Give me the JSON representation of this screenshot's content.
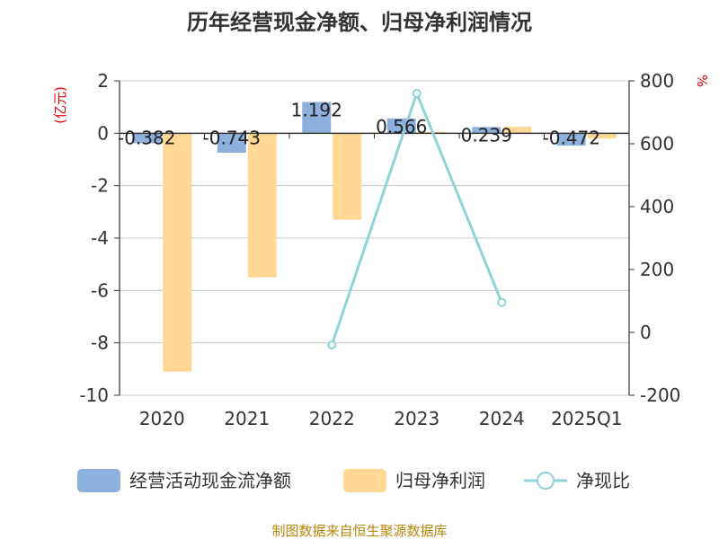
{
  "chart_data": {
    "type": "bar",
    "title": "历年经营现金净额、归母净利润情况",
    "categories": [
      "2020",
      "2021",
      "2022",
      "2023",
      "2024",
      "2025Q1"
    ],
    "left_axis": {
      "unit": "(亿元)",
      "ylim": [
        -10,
        2
      ],
      "ticks": [
        2,
        0,
        -2,
        -4,
        -6,
        -8,
        -10
      ]
    },
    "right_axis": {
      "unit": "%",
      "ylim": [
        -200,
        800
      ],
      "ticks": [
        800,
        600,
        400,
        200,
        0,
        -200
      ]
    },
    "series": [
      {
        "name": "经营活动现金流净额",
        "axis": "left",
        "kind": "bar",
        "color": "#8eb0dc",
        "values": [
          -0.382,
          -0.743,
          1.192,
          0.566,
          0.239,
          -0.472
        ],
        "labels": [
          "-0.382",
          "-0.743",
          "1.192",
          "0.566",
          "0.239",
          "-0.472"
        ]
      },
      {
        "name": "归母净利润",
        "axis": "left",
        "kind": "bar",
        "color": "#ffd896",
        "values": [
          -9.1,
          -5.5,
          -3.3,
          0.05,
          0.25,
          -0.2
        ]
      },
      {
        "name": "净现比",
        "axis": "right",
        "kind": "line",
        "color": "#8dd3d9",
        "values": [
          null,
          null,
          -40,
          760,
          95,
          null
        ]
      }
    ],
    "legend": "bottom",
    "grid": true
  },
  "source": "制图数据来自恒生聚源数据库"
}
